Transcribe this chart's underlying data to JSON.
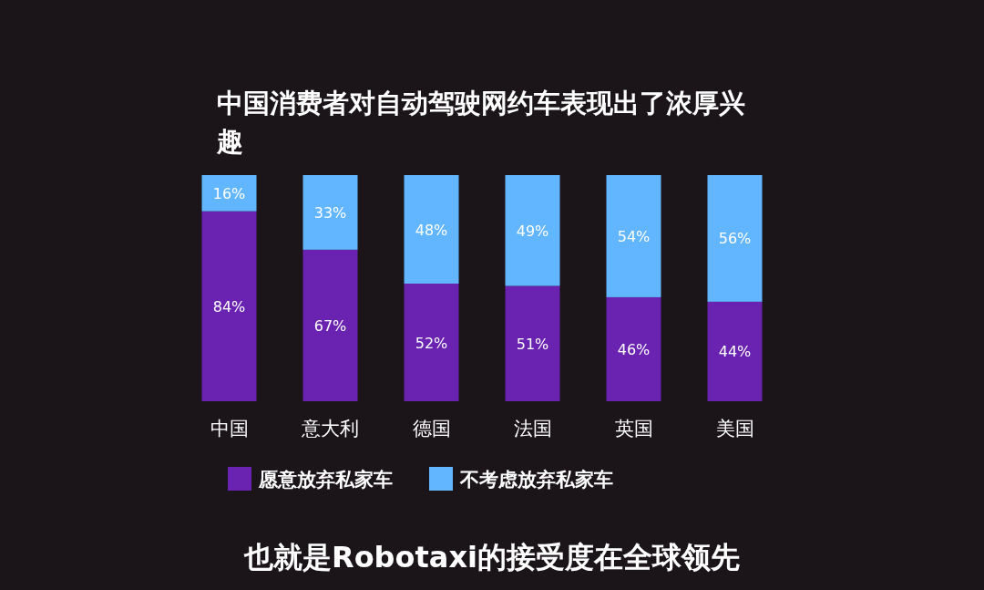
{
  "chart_data": {
    "type": "bar",
    "stacked": true,
    "title": "中国消费者对自动驾驶网约车表现出了浓厚兴趣",
    "categories": [
      "中国",
      "意大利",
      "德国",
      "法国",
      "英国",
      "美国"
    ],
    "ylim": [
      0,
      100
    ],
    "tick_labels": "x",
    "legend": "bottom",
    "series": [
      {
        "name": "愿意放弃私家车",
        "color": "#6a22b0",
        "values": [
          84,
          67,
          52,
          51,
          46,
          44
        ],
        "value_labels": [
          "84%",
          "67%",
          "52%",
          "51%",
          "46%",
          "44%"
        ]
      },
      {
        "name": "不考虑放弃私家车",
        "color": "#62b6ff",
        "values": [
          16,
          33,
          48,
          49,
          54,
          56
        ],
        "value_labels": [
          "16%",
          "33%",
          "48%",
          "49%",
          "54%",
          "56%"
        ]
      }
    ],
    "annotations": [
      "也就是Robotaxi的接受度在全球领先"
    ]
  }
}
